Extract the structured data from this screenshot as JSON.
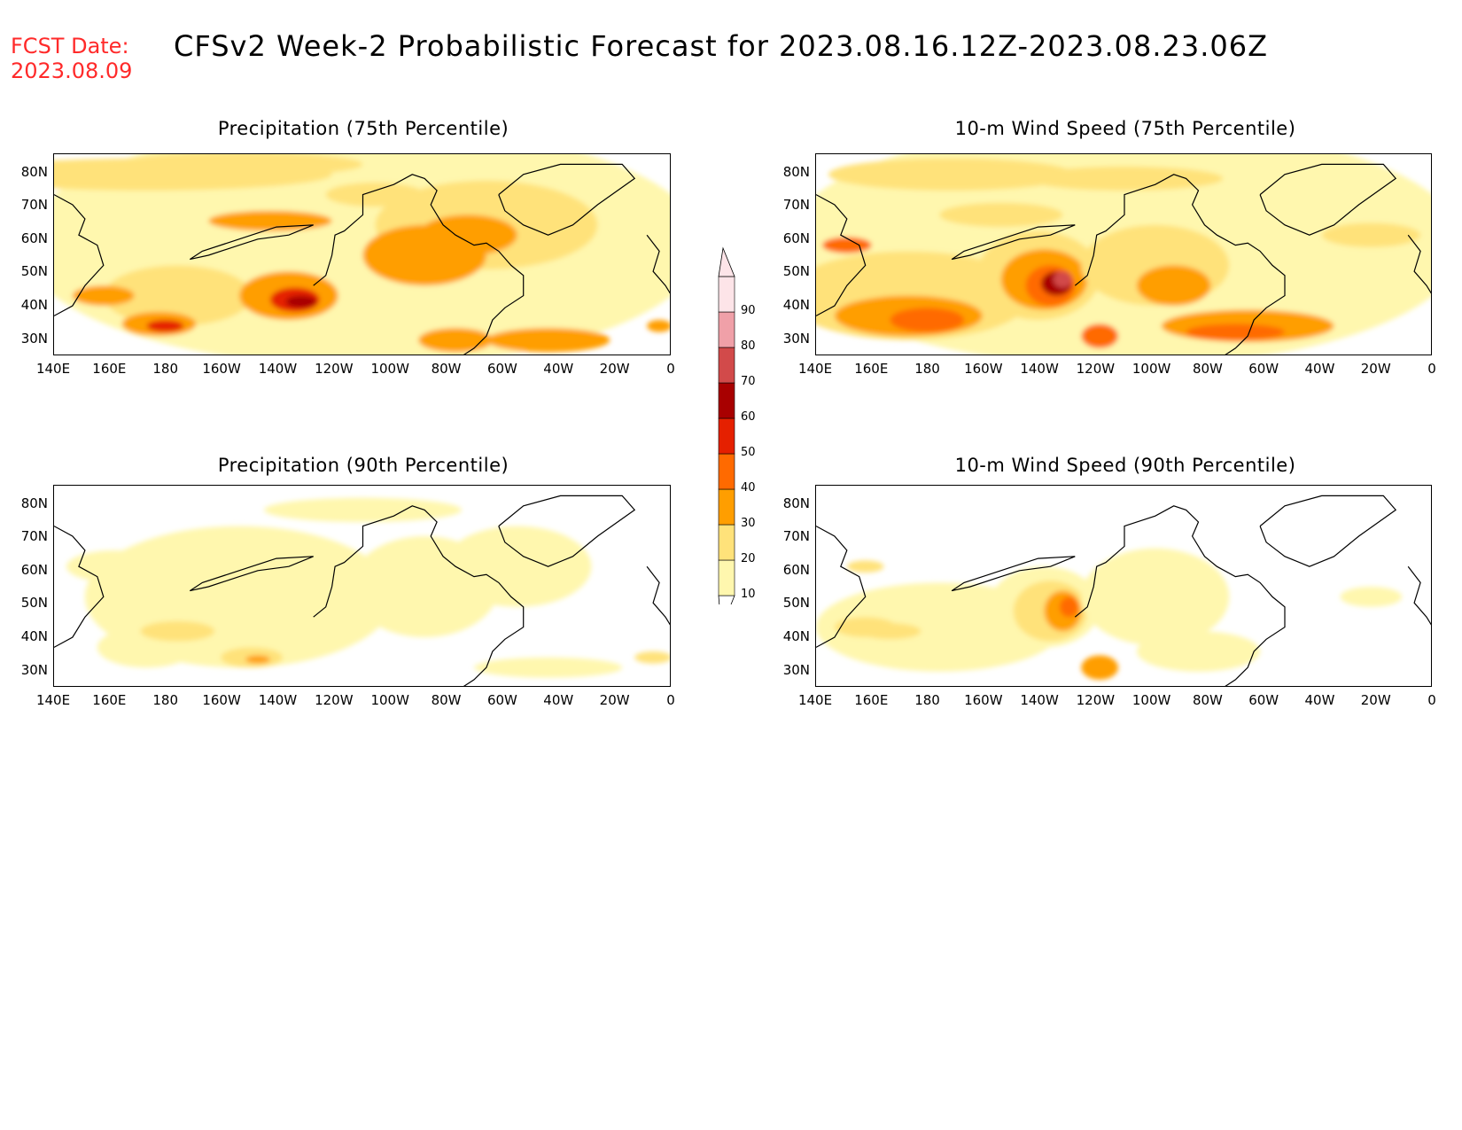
{
  "header": {
    "fcst_line1": "FCST Date:",
    "fcst_line2": "2023.08.09",
    "title": "CFSv2 Week-2 Probabilistic Forecast for 2023.08.16.12Z-2023.08.23.06Z"
  },
  "panels": [
    {
      "title": "Precipitation (75th Percentile)"
    },
    {
      "title": "10-m Wind Speed (75th Percentile)"
    },
    {
      "title": "Precipitation (90th Percentile)"
    },
    {
      "title": "10-m Wind Speed (90th Percentile)"
    }
  ],
  "lat_labels": [
    "80N",
    "70N",
    "60N",
    "50N",
    "40N",
    "30N"
  ],
  "lon_labels": [
    "140E",
    "160E",
    "180",
    "160W",
    "140W",
    "120W",
    "100W",
    "80W",
    "60W",
    "40W",
    "20W",
    "0"
  ],
  "colorbar": {
    "levels": [
      "10",
      "20",
      "30",
      "40",
      "50",
      "60",
      "70",
      "80",
      "90"
    ],
    "colors": [
      "#fff7ae",
      "#ffe27a",
      "#ff9e00",
      "#ff6a00",
      "#e52000",
      "#a80000",
      "#d24a4a",
      "#f0a0a8",
      "#fde4e8"
    ]
  }
}
